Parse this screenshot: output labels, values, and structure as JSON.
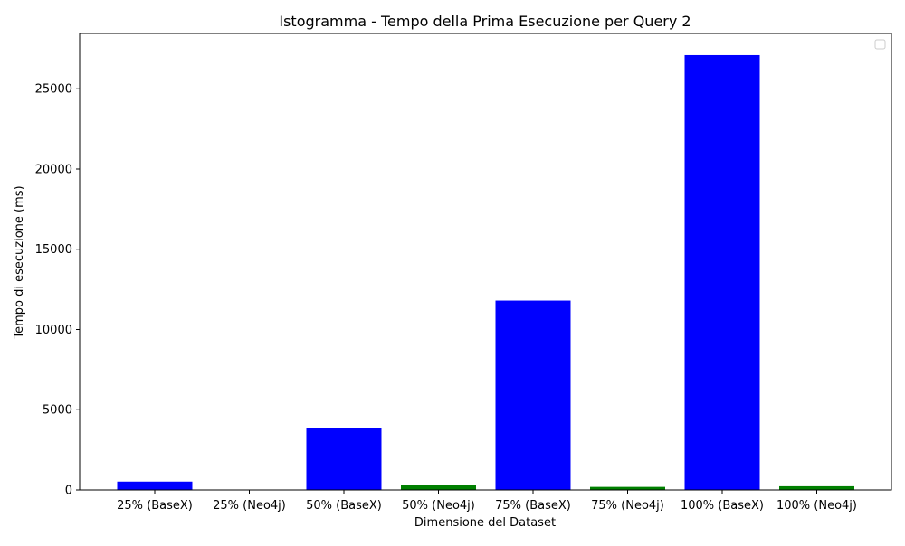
{
  "chart_data": {
    "type": "bar",
    "title": "Istogramma - Tempo della Prima Esecuzione per Query 2",
    "xlabel": "Dimensione del Dataset",
    "ylabel": "Tempo di esecuzione (ms)",
    "categories": [
      "25% (BaseX)",
      "25% (Neo4j)",
      "50% (BaseX)",
      "50% (Neo4j)",
      "75% (BaseX)",
      "75% (Neo4j)",
      "100% (BaseX)",
      "100% (Neo4j)"
    ],
    "values": [
      520,
      20,
      3850,
      300,
      11800,
      190,
      27100,
      230
    ],
    "bar_colors": [
      "#0000ff",
      "#008000",
      "#0000ff",
      "#008000",
      "#0000ff",
      "#008000",
      "#0000ff",
      "#008000"
    ],
    "ylim": [
      0,
      28450
    ],
    "yticks": [
      0,
      5000,
      10000,
      15000,
      20000,
      25000
    ],
    "grid": false,
    "legend": "top-right (empty)"
  }
}
